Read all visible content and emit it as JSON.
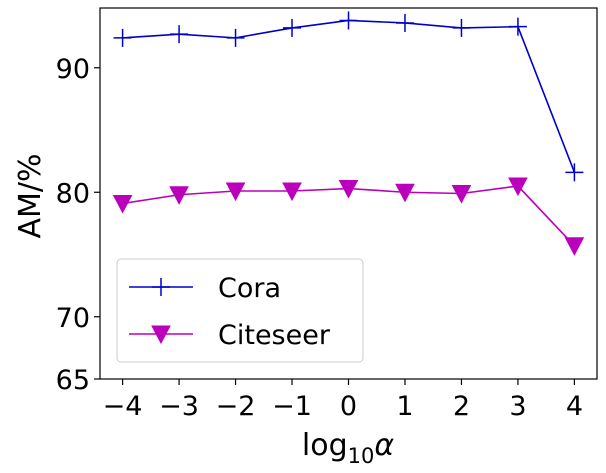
{
  "chart_data": {
    "type": "line",
    "title": "",
    "xlabel": "log",
    "xlabel_subscript": "10",
    "xlabel_symbol": "α",
    "ylabel": "AM/%",
    "x": [
      -4,
      -3,
      -2,
      -1,
      0,
      1,
      2,
      3,
      4
    ],
    "x_tick_labels": [
      "−4",
      "−3",
      "−2",
      "−1",
      "0",
      "1",
      "2",
      "3",
      "4"
    ],
    "xlim": [
      -4.4,
      4.4
    ],
    "y_ticks": [
      65,
      70,
      80,
      90
    ],
    "y_tick_labels": [
      "65",
      "70",
      "80",
      "90"
    ],
    "ylim": [
      65,
      94.8
    ],
    "grid": false,
    "legend_position": "lower-left",
    "series": [
      {
        "name": "Cora",
        "color": "#0000cc",
        "marker": "plus",
        "values": [
          92.4,
          92.7,
          92.4,
          93.2,
          93.8,
          93.6,
          93.2,
          93.3,
          81.6
        ]
      },
      {
        "name": "Citeseer",
        "color": "#bb00bb",
        "marker": "triangle-down",
        "values": [
          79.1,
          79.8,
          80.1,
          80.1,
          80.3,
          80.0,
          79.9,
          80.5,
          75.7
        ]
      }
    ]
  }
}
